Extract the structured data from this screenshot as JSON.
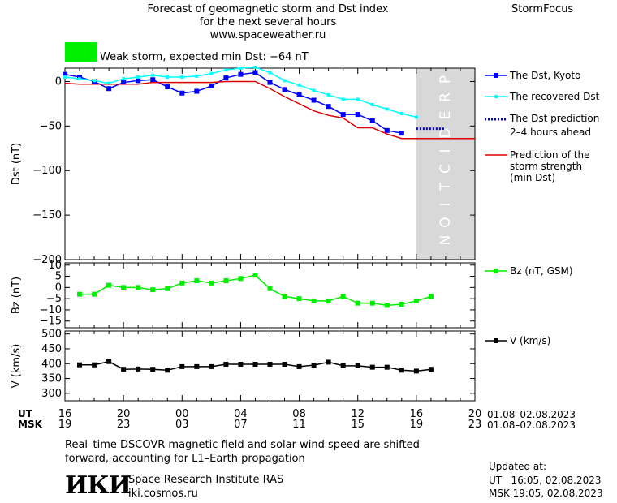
{
  "header": {
    "title_line1": "Forecast of geomagnetic storm and Dst index",
    "title_line2": "for the next several hours",
    "website": "www.spaceweather.ru",
    "brand": "StormFocus",
    "storm_text": "Weak storm, expected min Dst: −64 nT",
    "storm_color": "#00ee00"
  },
  "time_axis": {
    "ut_label": "UT",
    "msk_label": "MSK",
    "ut_ticks": [
      "16",
      "20",
      "00",
      "04",
      "08",
      "12",
      "16",
      "20"
    ],
    "msk_ticks": [
      "19",
      "23",
      "03",
      "07",
      "11",
      "15",
      "19",
      "23"
    ],
    "ut_date_range": "01.08–02.08.2023",
    "msk_date_range": "01.08–02.08.2023"
  },
  "prediction_label": "PREDICTION",
  "footer": {
    "note_line1": "Real–time DSCOVR magnetic field and solar wind speed are shifted",
    "note_line2": "forward, accounting for L1–Earth propagation",
    "logo_text": "ИКИ",
    "institute": "Space Research Institute RAS",
    "institute_url": "iki.cosmos.ru",
    "updated_label": "Updated at:",
    "updated_ut": "UT   16:05, 02.08.2023",
    "updated_msk": "MSK 19:05, 02.08.2023"
  },
  "chart_data": [
    {
      "type": "line",
      "panel": "dst",
      "ylabel": "Dst (nT)",
      "ylim": [
        -200,
        15
      ],
      "yticks": [
        0,
        -50,
        -100,
        -150,
        -200
      ],
      "xlim_hours": [
        0,
        28
      ],
      "prediction_region_hours": [
        24,
        28
      ],
      "series": [
        {
          "name": "The Dst, Kyoto",
          "color": "#0000ff",
          "style": "line-square",
          "x": [
            0,
            1,
            2,
            3,
            4,
            5,
            6,
            7,
            8,
            9,
            10,
            11,
            12,
            13,
            14,
            15,
            16,
            17,
            18,
            19,
            20,
            21,
            22,
            23
          ],
          "y": [
            8,
            5,
            0,
            -8,
            -1,
            1,
            2,
            -6,
            -13,
            -11,
            -5,
            4,
            8,
            10,
            -1,
            -9,
            -15,
            -21,
            -28,
            -37,
            -37,
            -44,
            -55,
            -58
          ]
        },
        {
          "name": "The recovered Dst",
          "color": "#00ffff",
          "style": "line-square-small",
          "x": [
            0,
            1,
            2,
            3,
            4,
            5,
            6,
            7,
            8,
            9,
            10,
            11,
            12,
            13,
            14,
            15,
            16,
            17,
            18,
            19,
            20,
            21,
            22,
            23,
            24
          ],
          "y": [
            5,
            3,
            1,
            -2,
            3,
            5,
            7,
            5,
            5,
            6,
            9,
            13,
            15,
            16,
            10,
            1,
            -4,
            -10,
            -15,
            -20,
            -20,
            -26,
            -31,
            -36,
            -40
          ]
        },
        {
          "name": "The Dst prediction 2–4 hours ahead",
          "color": "#0000ff",
          "style": "dotted",
          "x": [
            24,
            24.5,
            25,
            25.5,
            26
          ],
          "y": [
            -53,
            -53,
            -53,
            -53,
            -53
          ]
        },
        {
          "name": "Prediction of the storm strength (min Dst)",
          "color": "#dd0000",
          "style": "line",
          "x": [
            0,
            1,
            2,
            3,
            4,
            5,
            6,
            7,
            8,
            9,
            10,
            11,
            12,
            13,
            14,
            15,
            16,
            17,
            18,
            19,
            20,
            21,
            22,
            23,
            24,
            25,
            26,
            27,
            28
          ],
          "y": [
            -2,
            -3,
            -3,
            -3,
            -3,
            -3,
            -1,
            -1,
            -1,
            -1,
            -1,
            0,
            0,
            0,
            -8,
            -17,
            -25,
            -33,
            -38,
            -41,
            -52,
            -52,
            -59,
            -64,
            -64,
            -64,
            -64,
            -64,
            -64
          ]
        }
      ]
    },
    {
      "type": "line",
      "panel": "bz",
      "ylabel": "Bz (nT)",
      "ylim": [
        -18,
        11
      ],
      "yticks": [
        10,
        5,
        0,
        -5,
        -10,
        -15
      ],
      "xlim_hours": [
        0,
        28
      ],
      "series": [
        {
          "name": "Bz (nT, GSM)",
          "color": "#00ee00",
          "style": "line-square",
          "x": [
            1,
            2,
            3,
            4,
            5,
            6,
            7,
            8,
            9,
            10,
            11,
            12,
            13,
            14,
            15,
            16,
            17,
            18,
            19,
            20,
            21,
            22,
            23,
            24,
            25
          ],
          "y": [
            -3,
            -3,
            1,
            0,
            0,
            -1,
            -0.5,
            2,
            3,
            2,
            3,
            4,
            5.5,
            -0.5,
            -4,
            -5,
            -6,
            -6,
            -4,
            -7,
            -7,
            -8,
            -7.5,
            -6,
            -4
          ]
        }
      ]
    },
    {
      "type": "line",
      "panel": "v",
      "ylabel": "V (km/s)",
      "ylim": [
        275,
        510
      ],
      "yticks": [
        500,
        450,
        400,
        350,
        300
      ],
      "xlim_hours": [
        0,
        28
      ],
      "series": [
        {
          "name": "V (km/s)",
          "color": "#000000",
          "style": "line-square",
          "x": [
            1,
            2,
            3,
            4,
            5,
            6,
            7,
            8,
            9,
            10,
            11,
            12,
            13,
            14,
            15,
            16,
            17,
            18,
            19,
            20,
            21,
            22,
            23,
            24,
            25
          ],
          "y": [
            396,
            396,
            407,
            381,
            382,
            381,
            378,
            390,
            390,
            390,
            398,
            398,
            398,
            398,
            398,
            390,
            395,
            405,
            393,
            393,
            388,
            388,
            378,
            375,
            381
          ]
        }
      ]
    }
  ],
  "legend": {
    "dst_kyoto": "The Dst, Kyoto",
    "dst_recovered": "The recovered Dst",
    "dst_pred_line1": "The Dst prediction",
    "dst_pred_line2": "2–4 hours ahead",
    "storm_line1": "Prediction of the",
    "storm_line2": "storm strength",
    "storm_line3": "(min Dst)",
    "bz": "Bz (nT, GSM)",
    "v": "V (km/s)"
  }
}
